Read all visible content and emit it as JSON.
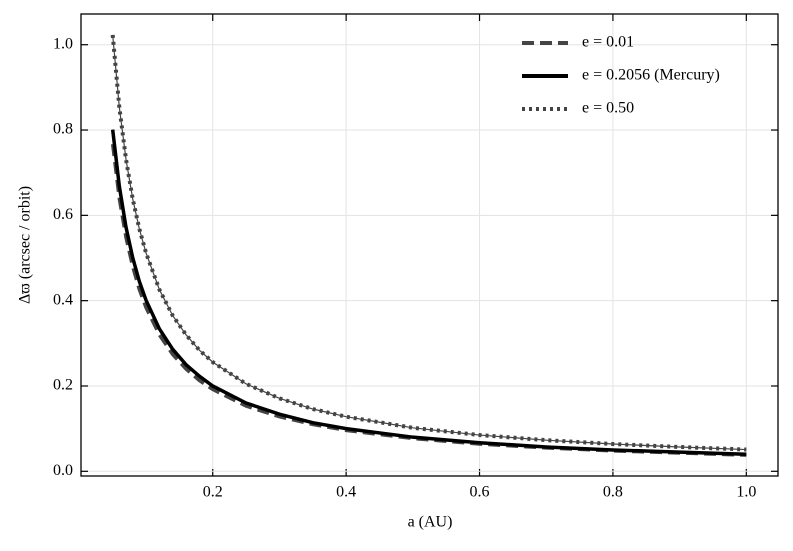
{
  "chart_data": {
    "type": "line",
    "xlabel": "a (AU)",
    "ylabel": "Δϖ (arcsec / orbit)",
    "x": [
      0.05,
      0.06,
      0.07,
      0.08,
      0.09,
      0.1,
      0.12,
      0.14,
      0.16,
      0.18,
      0.2,
      0.25,
      0.3,
      0.35,
      0.4,
      0.5,
      0.6,
      0.7,
      0.8,
      0.9,
      1.0
    ],
    "series": [
      {
        "name": "e = 0.01",
        "color": "#444444",
        "style": "dashed",
        "values": [
          0.767,
          0.639,
          0.548,
          0.48,
          0.426,
          0.384,
          0.32,
          0.274,
          0.24,
          0.213,
          0.192,
          0.153,
          0.128,
          0.11,
          0.096,
          0.077,
          0.064,
          0.055,
          0.048,
          0.043,
          0.038
        ]
      },
      {
        "name": "e = 0.2056 (Mercury)",
        "color": "#000000",
        "style": "solid",
        "values": [
          0.801,
          0.668,
          0.572,
          0.501,
          0.445,
          0.401,
          0.334,
          0.286,
          0.25,
          0.223,
          0.2,
          0.16,
          0.134,
          0.114,
          0.1,
          0.08,
          0.067,
          0.057,
          0.05,
          0.045,
          0.04
        ]
      },
      {
        "name": "e = 0.50",
        "color": "#444444",
        "style": "dotted",
        "values": [
          1.023,
          0.853,
          0.731,
          0.639,
          0.568,
          0.512,
          0.426,
          0.365,
          0.32,
          0.284,
          0.256,
          0.205,
          0.171,
          0.146,
          0.128,
          0.102,
          0.085,
          0.073,
          0.064,
          0.057,
          0.051
        ]
      }
    ],
    "xlim": [
      0.0025,
      1.0475
    ],
    "xticks": [
      0.2,
      0.4,
      0.6,
      0.8,
      {
        "value": 1,
        "label": "1.0"
      }
    ],
    "ylim": [
      -0.011,
      1.072
    ],
    "yticks": [
      {
        "value": 0,
        "label": "0.0"
      },
      0.2,
      0.4,
      0.6,
      0.8,
      {
        "value": 1,
        "label": "1.0"
      }
    ],
    "grid": true,
    "legend": "upper-right"
  }
}
